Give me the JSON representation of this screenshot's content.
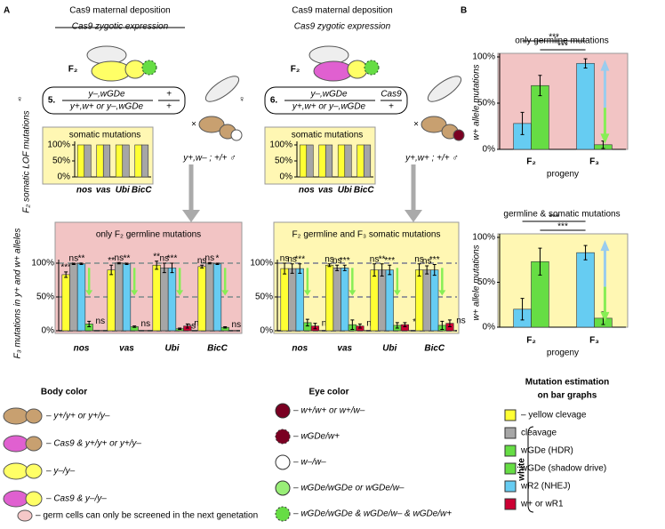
{
  "panel_labels": [
    "A",
    "B"
  ],
  "cross": {
    "left": {
      "header": [
        "Cas9 maternal deposition",
        "Cas9 zygotic expression"
      ],
      "generation": "F₂",
      "genotype": {
        "number": "5.",
        "top": "y–,wGDe",
        "bottom": "y+,w+ or y–,wGDe",
        "chrom_top": "+",
        "chrom_bottom": "+"
      },
      "male": "y+,w– ; +/+ ♂"
    },
    "right": {
      "header": [
        "Cas9 maternal deposition",
        "Cas9 zygotic expression"
      ],
      "generation": "F₂",
      "genotype": {
        "number": "6.",
        "top": "y–,wGDe",
        "bottom": "y+,w+ or y–,wGDe",
        "chrom_top": "Cas9",
        "chrom_bottom": "+"
      },
      "male": "y+,w+ ; +/+ ♂"
    },
    "female": "♀",
    "times": "×"
  },
  "chart_data": [
    {
      "type": "bar",
      "title": "somatic mutations",
      "ylabel": "F₂ somatic LOF mutations",
      "categories": [
        "nos",
        "vas",
        "Ubi",
        "BicC"
      ],
      "series": [
        {
          "color": "#ffff33",
          "values": [
            100,
            100,
            100,
            100
          ]
        },
        {
          "color": "#a6a6a6",
          "values": [
            100,
            100,
            100,
            100
          ]
        }
      ],
      "ylim": [
        0,
        100
      ],
      "yticks": [
        {
          "value": 0,
          "label": "0%"
        },
        {
          "value": 50,
          "label": "50%"
        },
        {
          "value": 100,
          "label": "100%"
        }
      ]
    },
    {
      "type": "bar",
      "title": "somatic mutations",
      "categories": [
        "nos",
        "vas",
        "Ubi",
        "BicC"
      ],
      "series": [
        {
          "color": "#ffff33",
          "values": [
            100,
            100,
            100,
            100
          ]
        },
        {
          "color": "#a6a6a6",
          "values": [
            100,
            100,
            100,
            100
          ]
        }
      ],
      "ylim": [
        0,
        100
      ],
      "yticks": [
        {
          "value": 0,
          "label": "0%"
        },
        {
          "value": 50,
          "label": "50%"
        },
        {
          "value": 100,
          "label": "100%"
        }
      ]
    },
    {
      "type": "bar",
      "title": "only F₂ germline mutations",
      "ylabel": "F₃ mutations in y+ and w+ alleles",
      "categories": [
        "nos",
        "vas",
        "Ubi",
        "BicC"
      ],
      "grid": true,
      "series": [
        {
          "color": "#ffff33",
          "values": [
            83,
            90,
            97,
            95
          ],
          "errors": [
            4,
            7,
            6,
            2
          ],
          "significance": [
            "***",
            "**",
            "**",
            "ns"
          ]
        },
        {
          "color": "#a6a6a6",
          "values": [
            99,
            100,
            93,
            100
          ],
          "errors": [
            1,
            1,
            7,
            1
          ],
          "significance": [
            "ns",
            "ns",
            "ns",
            "ns"
          ]
        },
        {
          "color": "#66ccf2",
          "values": [
            99,
            99,
            93,
            99
          ],
          "errors": [
            1,
            1,
            7,
            1
          ],
          "significance": [
            "**",
            "**",
            "***",
            "*"
          ]
        },
        {
          "color": "#66dd44",
          "values": [
            10,
            6,
            3,
            5
          ],
          "errors": [
            4,
            1,
            1,
            1
          ],
          "significance": [
            "ns",
            "ns",
            "ns",
            "ns"
          ]
        },
        {
          "color": "#cc0033",
          "values": [
            null,
            null,
            7,
            null
          ],
          "errors": [
            null,
            null,
            3,
            null
          ],
          "significance": [
            null,
            null,
            "ns",
            null
          ]
        }
      ],
      "ylim": [
        0,
        100
      ],
      "yticks": [
        {
          "value": 0,
          "label": "0%"
        },
        {
          "value": 50,
          "label": "50%"
        },
        {
          "value": 100,
          "label": "100%"
        }
      ]
    },
    {
      "type": "bar",
      "title": "F₂ germline and F₃ somatic mutations",
      "categories": [
        "nos",
        "vas",
        "Ubi",
        "BicC"
      ],
      "grid": true,
      "series": [
        {
          "color": "#ffff33",
          "values": [
            92,
            97,
            90,
            90
          ],
          "errors": [
            8,
            2,
            9,
            9
          ],
          "significance": [
            "ns",
            "ns",
            "ns",
            "ns"
          ]
        },
        {
          "color": "#a6a6a6",
          "values": [
            92,
            93,
            90,
            90
          ],
          "errors": [
            7,
            4,
            9,
            6
          ],
          "significance": [
            "ns",
            "ns",
            "**",
            "ns"
          ]
        },
        {
          "color": "#66ccf2",
          "values": [
            92,
            93,
            90,
            90
          ],
          "errors": [
            7,
            4,
            7,
            8
          ],
          "significance": [
            "***",
            "***",
            "***",
            "***"
          ]
        },
        {
          "color": "#66dd44",
          "values": [
            12,
            9,
            8,
            8
          ],
          "errors": [
            5,
            7,
            4,
            6
          ]
        },
        {
          "color": "#cc0033",
          "values": [
            7,
            7,
            9,
            11
          ],
          "errors": [
            4,
            3,
            3,
            5
          ],
          "significance": [
            "ns",
            "ns",
            "**",
            "ns"
          ]
        }
      ],
      "ylim": [
        0,
        100
      ],
      "yticks": [
        {
          "value": 0,
          "label": "0%"
        },
        {
          "value": 50,
          "label": "50%"
        },
        {
          "value": 100,
          "label": "100%"
        }
      ]
    },
    {
      "type": "bar",
      "title": "only germline mutations",
      "ylabel": "w+ allele mutations",
      "xlabel": "progeny",
      "categories": [
        "F₂",
        "F₃"
      ],
      "annotations": [
        "***",
        "***"
      ],
      "series": [
        {
          "color": "#66ccf2",
          "values": [
            28,
            93
          ],
          "errors": [
            12,
            5
          ]
        },
        {
          "color": "#66dd44",
          "values": [
            69,
            5
          ],
          "errors": [
            11,
            4
          ]
        }
      ],
      "ylim": [
        0,
        100
      ],
      "yticks": [
        {
          "value": 0,
          "label": "0%"
        },
        {
          "value": 50,
          "label": "50%"
        },
        {
          "value": 100,
          "label": "100%"
        }
      ]
    },
    {
      "type": "bar",
      "title": "germline & somatic mutations",
      "ylabel": "w+ allele mutations",
      "xlabel": "progeny",
      "categories": [
        "F₂",
        "F₃"
      ],
      "annotations": [
        "***",
        "***"
      ],
      "series": [
        {
          "color": "#66ccf2",
          "values": [
            20,
            83
          ],
          "errors": [
            12,
            8
          ]
        },
        {
          "color": "#66dd44",
          "values": [
            73,
            10
          ],
          "errors": [
            15,
            7
          ]
        }
      ],
      "ylim": [
        0,
        100
      ],
      "yticks": [
        {
          "value": 0,
          "label": "0%"
        },
        {
          "value": 50,
          "label": "50%"
        },
        {
          "value": 100,
          "label": "100%"
        }
      ]
    }
  ],
  "body_legend": {
    "title": "Body color",
    "rows": [
      "– y+/y+ or y+/y–",
      "– Cas9 & y+/y+ or y+/y–",
      "– y–/y–",
      "– Cas9 & y–/y–"
    ],
    "note": "– germ cells can only be screened in the next genetation"
  },
  "eye_legend": {
    "title": "Eye color",
    "rows": [
      "– w+/w+ or w+/w–",
      "– wGDe/w+",
      "– w–/w–",
      "– wGDe/wGDe or wGDe/w–",
      "– wGDe/wGDe & wGDe/w– & wGDe/w+"
    ]
  },
  "bar_legend": {
    "title": [
      "Mutation estimation",
      "on bar graphs"
    ],
    "group": "white",
    "items": [
      {
        "color": "#ffff33",
        "label": "– yellow clevage"
      },
      {
        "color": "#a6a6a6",
        "label": "cleavage"
      },
      {
        "color": "#66dd44",
        "label": "wGDe (HDR)"
      },
      {
        "color": "#66dd44",
        "label": "wGDe (shadow drive)"
      },
      {
        "color": "#66ccf2",
        "label": "wR2 (NHEJ)"
      },
      {
        "color": "#cc0033",
        "label": "w+ or wR1"
      }
    ]
  }
}
